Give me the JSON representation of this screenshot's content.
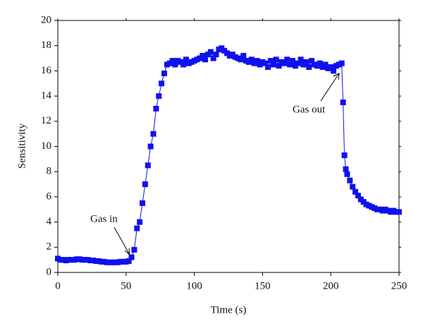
{
  "chart_data": {
    "type": "line",
    "xlabel": "Time (s)",
    "ylabel": "Sensitivity",
    "annotations": [
      "Gas in",
      "Gas out"
    ],
    "color": "#1010ee",
    "xlim": [
      0,
      250
    ],
    "xticks": [
      0,
      50,
      100,
      150,
      200,
      250
    ],
    "ylim": [
      0,
      20
    ],
    "yticks": [
      0,
      2,
      4,
      6,
      8,
      10,
      12,
      14,
      16,
      18,
      20
    ],
    "x": [
      0,
      2,
      4,
      6,
      8,
      10,
      12,
      14,
      16,
      18,
      20,
      22,
      24,
      26,
      28,
      30,
      32,
      34,
      36,
      38,
      40,
      42,
      44,
      46,
      48,
      50,
      52,
      54,
      56,
      58,
      60,
      62,
      64,
      66,
      68,
      70,
      72,
      74,
      76,
      78,
      80,
      82,
      84,
      86,
      88,
      90,
      92,
      94,
      96,
      98,
      100,
      102,
      104,
      106,
      108,
      110,
      112,
      114,
      116,
      118,
      120,
      122,
      124,
      126,
      128,
      130,
      132,
      134,
      136,
      138,
      140,
      142,
      144,
      146,
      148,
      150,
      152,
      154,
      156,
      158,
      160,
      162,
      164,
      166,
      168,
      170,
      172,
      174,
      176,
      178,
      180,
      182,
      184,
      186,
      188,
      190,
      192,
      194,
      196,
      198,
      200,
      202,
      204,
      206,
      208,
      209,
      210,
      211,
      212,
      214,
      216,
      218,
      220,
      222,
      224,
      226,
      228,
      230,
      232,
      234,
      236,
      238,
      240,
      242,
      244,
      246,
      248,
      250
    ],
    "values": [
      1.1,
      1.0,
      1.0,
      0.95,
      1.0,
      1.0,
      1.0,
      1.05,
      1.05,
      1.0,
      1.0,
      1.0,
      0.95,
      0.95,
      0.9,
      0.9,
      0.85,
      0.85,
      0.8,
      0.8,
      0.8,
      0.8,
      0.8,
      0.85,
      0.85,
      0.85,
      0.9,
      1.2,
      1.8,
      3.5,
      4.0,
      5.5,
      7.0,
      8.5,
      10,
      11,
      13,
      14,
      15,
      15.8,
      16.5,
      16.6,
      16.8,
      16.5,
      16.8,
      16.7,
      16.5,
      16.9,
      16.6,
      16.7,
      16.8,
      16.9,
      17,
      17.2,
      16.9,
      17.3,
      17.5,
      17.0,
      17.3,
      17.7,
      17.8,
      17.6,
      17.4,
      17.2,
      17.3,
      17.1,
      17.0,
      16.9,
      17.2,
      16.8,
      16.7,
      16.9,
      16.6,
      16.8,
      16.5,
      16.7,
      16.6,
      16.3,
      16.8,
      16.5,
      16.9,
      16.4,
      16.7,
      16.6,
      16.9,
      16.5,
      16.8,
      16.4,
      16.6,
      16.9,
      16.5,
      16.7,
      16.3,
      16.8,
      16.5,
      16.4,
      16.6,
      16.3,
      16.5,
      16.2,
      16.3,
      16.0,
      16.4,
      16.5,
      16.6,
      13.5,
      9.3,
      8.2,
      7.8,
      7.3,
      6.8,
      6.4,
      6.1,
      5.8,
      5.6,
      5.4,
      5.3,
      5.2,
      5.1,
      5.0,
      5.0,
      4.9,
      5.0,
      4.9,
      4.8,
      4.9,
      4.8,
      4.8
    ]
  }
}
